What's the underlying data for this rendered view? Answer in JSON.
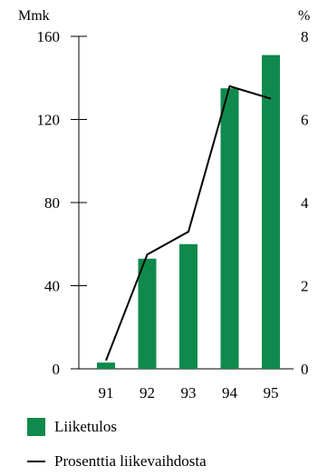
{
  "chart_data": {
    "type": "bar",
    "categories": [
      "91",
      "92",
      "93",
      "94",
      "95"
    ],
    "series": [
      {
        "name": "Liiketulos",
        "type": "bar",
        "axis": "left",
        "color": "#0f8a4c",
        "values": [
          3,
          53,
          60,
          135,
          151
        ]
      },
      {
        "name": "Prosenttia liikevaihdosta",
        "type": "line",
        "axis": "right",
        "color": "#000000",
        "values": [
          0.2,
          2.75,
          3.3,
          6.8,
          6.5
        ]
      }
    ],
    "left_axis": {
      "label": "Mmk",
      "min": 0,
      "max": 160,
      "ticks": [
        "0",
        "40",
        "80",
        "120",
        "160"
      ]
    },
    "right_axis": {
      "label": "%",
      "min": 0,
      "max": 8,
      "ticks": [
        "0",
        "2",
        "4",
        "6",
        "8"
      ]
    },
    "grid": false,
    "legend_position": "bottom-left"
  }
}
